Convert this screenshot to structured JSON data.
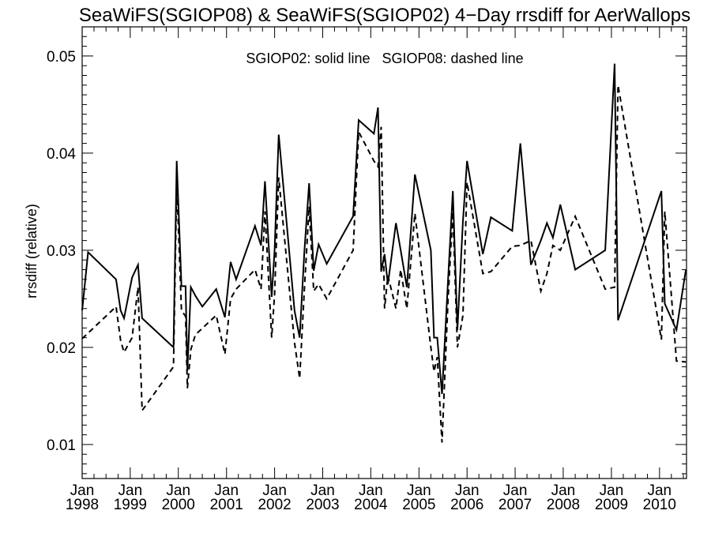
{
  "chart_data": {
    "type": "line",
    "title": "SeaWiFS(SGIOP08) & SeaWiFS(SGIOP02) 4−Day rrsdiff for AerWallops",
    "ylabel": "rrsdiff (relative)",
    "xlabel": "",
    "annotation": "SGIOP02: solid line   SGIOP08: dashed line",
    "xlim": [
      "1998-01-01",
      "2010-07-25"
    ],
    "ylim": [
      0.0065,
      0.053
    ],
    "y_ticks": [
      0.01,
      0.02,
      0.03,
      0.04,
      0.05
    ],
    "y_tick_labels": [
      "0.01",
      "0.02",
      "0.03",
      "0.04",
      "0.05"
    ],
    "x_ticks": [
      "1998-01-01",
      "1999-01-01",
      "2000-01-01",
      "2001-01-01",
      "2002-01-01",
      "2003-01-01",
      "2004-01-01",
      "2005-01-01",
      "2006-01-01",
      "2007-01-01",
      "2008-01-01",
      "2009-01-01",
      "2010-01-01"
    ],
    "x_tick_labels": [
      [
        "Jan",
        "1998"
      ],
      [
        "Jan",
        "1999"
      ],
      [
        "Jan",
        "2000"
      ],
      [
        "Jan",
        "2001"
      ],
      [
        "Jan",
        "2002"
      ],
      [
        "Jan",
        "2003"
      ],
      [
        "Jan",
        "2004"
      ],
      [
        "Jan",
        "2005"
      ],
      [
        "Jan",
        "2006"
      ],
      [
        "Jan",
        "2007"
      ],
      [
        "Jan",
        "2008"
      ],
      [
        "Jan",
        "2009"
      ],
      [
        "Jan",
        "2010"
      ]
    ],
    "grid": false,
    "series": [
      {
        "style": "solid",
        "color": "#000000",
        "x": [
          "1998-01-01",
          "1998-02-15",
          "1998-09-15",
          "1998-10-20",
          "1998-11-15",
          "1999-01-15",
          "1999-03-01",
          "1999-04-01",
          "1999-11-25",
          "1999-12-20",
          "2000-01-25",
          "2000-02-25",
          "2000-03-10",
          "2000-04-05",
          "2000-05-10",
          "2000-07-01",
          "2000-10-15",
          "2000-12-20",
          "2001-02-01",
          "2001-03-15",
          "2001-08-05",
          "2001-09-20",
          "2001-10-20",
          "2001-12-10",
          "2002-01-01",
          "2002-02-01",
          "2002-06-01",
          "2002-07-10",
          "2002-08-15",
          "2002-09-20",
          "2002-10-25",
          "2002-12-01",
          "2003-02-01",
          "2003-08-20",
          "2003-10-01",
          "2004-01-25",
          "2004-02-25",
          "2004-03-20",
          "2004-04-15",
          "2004-05-10",
          "2004-07-10",
          "2004-08-15",
          "2004-10-01",
          "2004-12-01",
          "2005-04-01",
          "2005-04-25",
          "2005-05-20",
          "2005-06-25",
          "2005-08-10",
          "2005-09-15",
          "2005-10-20",
          "2005-12-01",
          "2006-01-01",
          "2006-05-01",
          "2006-07-01",
          "2006-12-10",
          "2007-02-10",
          "2007-05-01",
          "2007-07-15",
          "2007-08-30",
          "2007-10-15",
          "2007-12-10",
          "2008-04-01",
          "2008-11-15",
          "2009-01-25",
          "2009-02-20",
          "2010-01-15",
          "2010-02-10",
          "2010-05-10",
          "2010-07-20"
        ],
        "values": [
          0.0238,
          0.0298,
          0.027,
          0.0238,
          0.023,
          0.0272,
          0.0285,
          0.023,
          0.02,
          0.0392,
          0.0263,
          0.0263,
          0.0176,
          0.0262,
          0.0253,
          0.0242,
          0.026,
          0.0231,
          0.0288,
          0.027,
          0.0325,
          0.0305,
          0.0371,
          0.0252,
          0.03,
          0.0419,
          0.0238,
          0.021,
          0.0299,
          0.0369,
          0.0279,
          0.0306,
          0.0286,
          0.0335,
          0.0434,
          0.042,
          0.0447,
          0.0278,
          0.0296,
          0.0265,
          0.0328,
          0.03,
          0.0262,
          0.0378,
          0.03,
          0.021,
          0.021,
          0.0152,
          0.027,
          0.0361,
          0.0218,
          0.033,
          0.0392,
          0.0296,
          0.0334,
          0.032,
          0.041,
          0.0285,
          0.031,
          0.0328,
          0.0313,
          0.0347,
          0.028,
          0.03,
          0.0492,
          0.0228,
          0.0361,
          0.0245,
          0.0218,
          0.028
        ]
      },
      {
        "style": "dashed",
        "color": "#000000",
        "x": [
          "1998-01-01",
          "1998-09-15",
          "1998-10-20",
          "1998-11-15",
          "1999-01-15",
          "1999-03-01",
          "1999-04-01",
          "1999-11-25",
          "1999-12-20",
          "2000-01-25",
          "2000-02-25",
          "2000-03-10",
          "2000-04-05",
          "2000-05-10",
          "2000-10-15",
          "2000-12-20",
          "2001-02-01",
          "2001-03-15",
          "2001-08-05",
          "2001-09-20",
          "2001-10-20",
          "2001-12-10",
          "2002-01-01",
          "2002-02-01",
          "2002-06-01",
          "2002-07-10",
          "2002-08-15",
          "2002-09-20",
          "2002-10-25",
          "2002-12-01",
          "2003-02-01",
          "2003-08-20",
          "2003-10-01",
          "2004-01-25",
          "2004-02-25",
          "2004-03-20",
          "2004-04-15",
          "2004-05-10",
          "2004-07-10",
          "2004-08-15",
          "2004-10-01",
          "2004-12-01",
          "2005-04-01",
          "2005-04-25",
          "2005-05-20",
          "2005-06-25",
          "2005-08-10",
          "2005-09-15",
          "2005-10-20",
          "2005-12-01",
          "2006-01-01",
          "2006-05-01",
          "2006-07-01",
          "2006-12-10",
          "2007-02-10",
          "2007-05-01",
          "2007-07-15",
          "2007-08-30",
          "2007-10-15",
          "2007-12-10",
          "2008-04-01",
          "2008-11-15",
          "2009-01-25",
          "2009-02-20",
          "2010-01-15",
          "2010-02-10",
          "2010-05-10",
          "2010-07-20"
        ],
        "values": [
          0.0209,
          0.0242,
          0.0207,
          0.0195,
          0.021,
          0.0262,
          0.0135,
          0.018,
          0.037,
          0.0238,
          0.0232,
          0.0158,
          0.0198,
          0.0213,
          0.0233,
          0.0193,
          0.025,
          0.026,
          0.028,
          0.026,
          0.034,
          0.021,
          0.0255,
          0.0375,
          0.0205,
          0.0168,
          0.026,
          0.0345,
          0.0258,
          0.0265,
          0.025,
          0.03,
          0.0422,
          0.0392,
          0.0386,
          0.0427,
          0.024,
          0.0274,
          0.024,
          0.028,
          0.024,
          0.0338,
          0.02,
          0.0175,
          0.019,
          0.0102,
          0.025,
          0.034,
          0.02,
          0.0233,
          0.037,
          0.0276,
          0.0278,
          0.0304,
          0.0305,
          0.031,
          0.0258,
          0.0276,
          0.0305,
          0.03,
          0.0335,
          0.026,
          0.0262,
          0.047,
          0.0208,
          0.034,
          0.0186,
          0.0185
        ]
      }
    ]
  }
}
